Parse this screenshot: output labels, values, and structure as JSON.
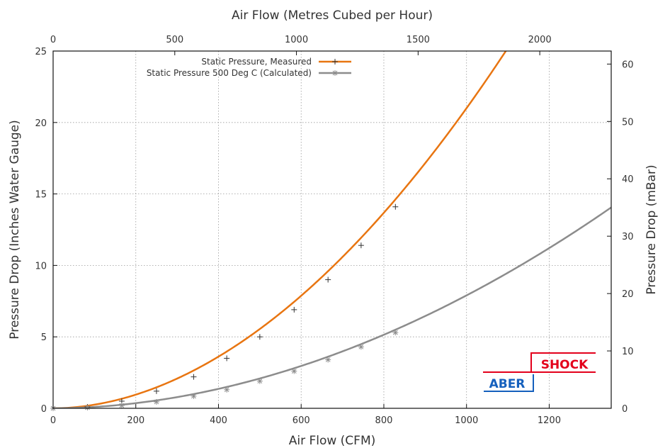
{
  "chart_data": {
    "type": "line",
    "x_axis": {
      "label": "Air Flow (CFM)",
      "range": [
        0,
        1350
      ],
      "ticks": [
        0,
        200,
        400,
        600,
        800,
        1000,
        1200
      ]
    },
    "x2_axis": {
      "label": "Air Flow (Metres Cubed per Hour)",
      "range": [
        0,
        2293.6
      ],
      "ticks": [
        0,
        500,
        1000,
        1500,
        2000
      ]
    },
    "y_axis": {
      "label": "Pressure Drop (Inches Water Gauge)",
      "range": [
        0,
        25
      ],
      "ticks": [
        0,
        5,
        10,
        15,
        20,
        25
      ]
    },
    "y2_axis": {
      "label": "Pressure Drop (mBar)",
      "range": [
        0,
        62.27
      ],
      "ticks": [
        0,
        10,
        20,
        30,
        40,
        50,
        60
      ]
    },
    "grid": true,
    "legend_position": "top-center",
    "series": [
      {
        "name": "Static Pressure, Measured",
        "color": "#e87511",
        "marker_color": "#333333",
        "fit_exponent": 1.92,
        "fit_point": [
          1000,
          21
        ],
        "points": [
          [
            0,
            0
          ],
          [
            83,
            0.1
          ],
          [
            166,
            0.5
          ],
          [
            250,
            1.2
          ],
          [
            340,
            2.2
          ],
          [
            420,
            3.5
          ],
          [
            500,
            5.0
          ],
          [
            583,
            6.9
          ],
          [
            665,
            9.0
          ],
          [
            745,
            11.4
          ],
          [
            828,
            14.1
          ]
        ]
      },
      {
        "name": "Static Pressure 500 Deg C (Calculated)",
        "color": "#8c8c8c",
        "marker_color": "#8c8c8c",
        "fit_exponent": 1.92,
        "fit_point": [
          1000,
          7.9
        ],
        "points": [
          [
            0,
            0
          ],
          [
            83,
            0.05
          ],
          [
            166,
            0.2
          ],
          [
            250,
            0.45
          ],
          [
            340,
            0.85
          ],
          [
            420,
            1.3
          ],
          [
            500,
            1.9
          ],
          [
            583,
            2.6
          ],
          [
            665,
            3.4
          ],
          [
            745,
            4.3
          ],
          [
            828,
            5.3
          ]
        ]
      }
    ]
  },
  "logo": {
    "top_word": "SHOCK",
    "bottom_word": "ABER",
    "top_color": "#e3001b",
    "bottom_color": "#1560bd"
  }
}
